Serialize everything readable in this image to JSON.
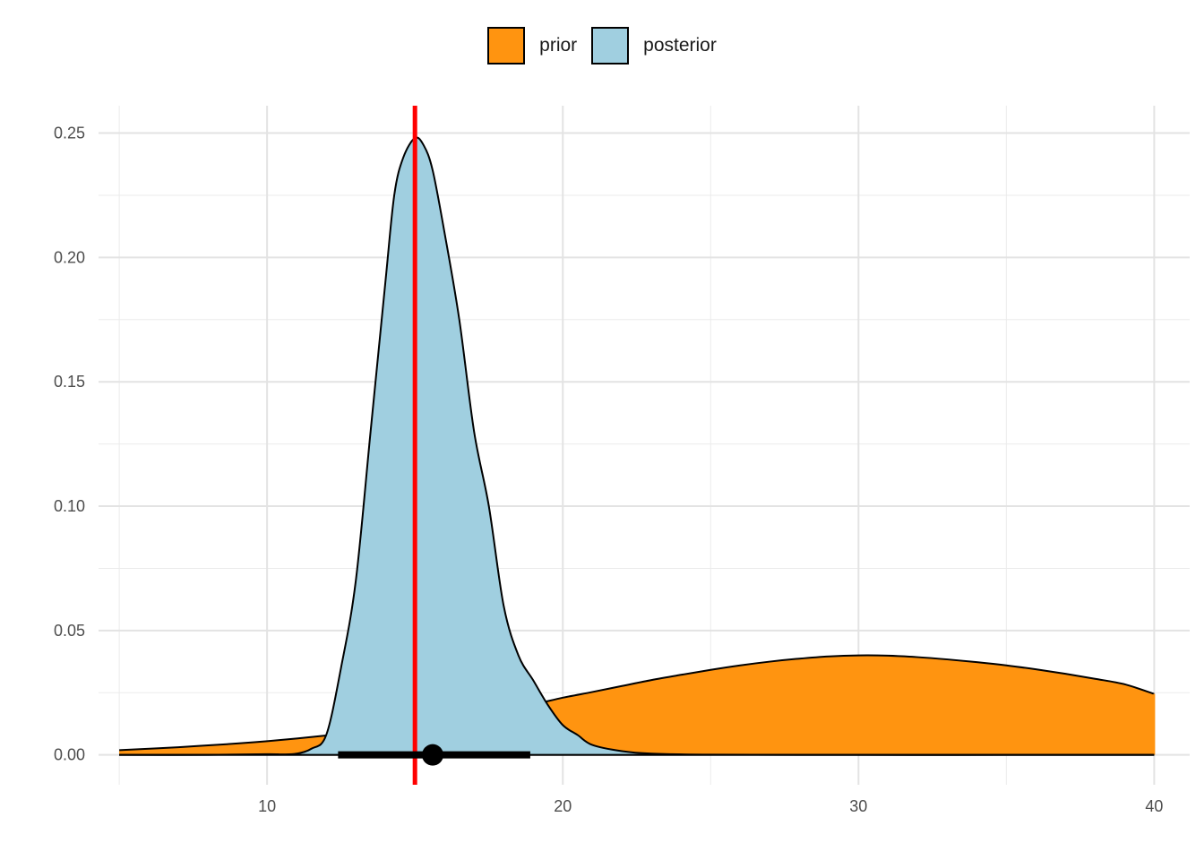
{
  "legend": {
    "items": [
      {
        "label": "prior",
        "color": "#FF9410"
      },
      {
        "label": "posterior",
        "color": "#A0CFE0"
      }
    ]
  },
  "chart_data": {
    "type": "area",
    "xlim": [
      4.3,
      41.2
    ],
    "ylim": [
      -0.012,
      0.261
    ],
    "x_ticks": [
      10,
      20,
      30,
      40
    ],
    "x_tick_labels": [
      "10",
      "20",
      "30",
      "40"
    ],
    "y_ticks": [
      0.0,
      0.05,
      0.1,
      0.15,
      0.2,
      0.25
    ],
    "y_tick_labels": [
      "0.00",
      "0.05",
      "0.10",
      "0.15",
      "0.20",
      "0.25"
    ],
    "grid": true,
    "legend_position": "top",
    "series": [
      {
        "name": "prior",
        "color": "#FF9410",
        "x": [
          5,
          7,
          9,
          10,
          11,
          12,
          13,
          14,
          15,
          16,
          17,
          18,
          19,
          20,
          21,
          22,
          23,
          24,
          25,
          26,
          27,
          28,
          29,
          30,
          31,
          32,
          33,
          34,
          35,
          36,
          37,
          38,
          39,
          40
        ],
        "y": [
          0.0019,
          0.0031,
          0.0046,
          0.0055,
          0.0066,
          0.0078,
          0.0092,
          0.0107,
          0.0124,
          0.0143,
          0.0163,
          0.0183,
          0.0203,
          0.023,
          0.0253,
          0.0277,
          0.0301,
          0.0322,
          0.0342,
          0.036,
          0.0375,
          0.0387,
          0.0396,
          0.04,
          0.0399,
          0.0393,
          0.0384,
          0.0373,
          0.036,
          0.0344,
          0.0326,
          0.0306,
          0.0284,
          0.0245
        ]
      },
      {
        "name": "posterior",
        "color": "#A0CFE0",
        "x": [
          5,
          8,
          10,
          10.5,
          11,
          11.5,
          12,
          12.5,
          13,
          13.5,
          14,
          14.3,
          14.6,
          15,
          15.3,
          15.6,
          16,
          16.5,
          17,
          17.5,
          18,
          18.5,
          19,
          19.5,
          20,
          20.5,
          21,
          22,
          23,
          25,
          30,
          35,
          40
        ],
        "y": [
          0,
          0,
          0.0003,
          0.0002,
          0.0005,
          0.0025,
          0.008,
          0.035,
          0.07,
          0.13,
          0.19,
          0.225,
          0.24,
          0.248,
          0.245,
          0.235,
          0.21,
          0.175,
          0.13,
          0.1,
          0.06,
          0.04,
          0.03,
          0.02,
          0.012,
          0.008,
          0.004,
          0.0015,
          0.0005,
          0.0001,
          0,
          0,
          0
        ]
      }
    ],
    "reference_line": {
      "x": 15,
      "color": "#FF0000"
    },
    "interval": {
      "low": 12.4,
      "high": 18.9,
      "point": 15.6,
      "color": "#000000"
    }
  }
}
